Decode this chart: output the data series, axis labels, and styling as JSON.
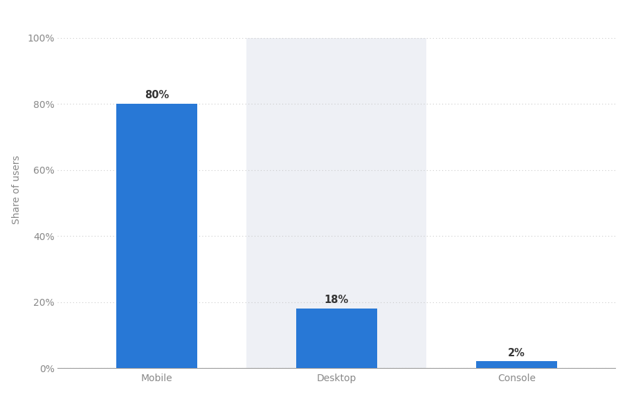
{
  "categories": [
    "Mobile",
    "Desktop",
    "Console"
  ],
  "values": [
    80,
    18,
    2
  ],
  "bar_color": "#2878d6",
  "highlight_bg_color": "#eef0f5",
  "highlight_index": 1,
  "ylabel": "Share of users",
  "yticks": [
    0,
    20,
    40,
    60,
    80,
    100
  ],
  "ytick_labels": [
    "0%",
    "20%",
    "40%",
    "60%",
    "80%",
    "100%"
  ],
  "ylim": [
    0,
    108
  ],
  "bar_labels": [
    "80%",
    "18%",
    "2%"
  ],
  "background_color": "#ffffff",
  "grid_color": "#c8c8c8",
  "tick_label_color": "#888888",
  "bar_label_color": "#333333",
  "bar_label_fontsize": 10.5,
  "axis_label_fontsize": 10,
  "tick_fontsize": 10,
  "bar_width": 0.45
}
